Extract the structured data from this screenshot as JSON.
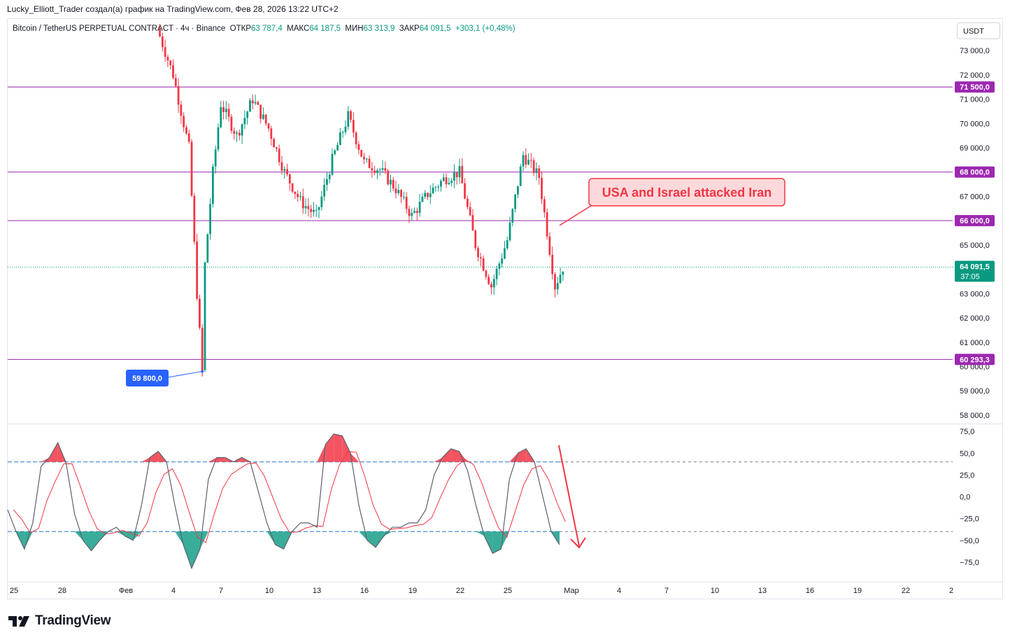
{
  "header": {
    "attribution": "Lucky_Elliott_Trader создал(а) график на TradingView.com, Фев 28, 2026 13:22 UTC+2"
  },
  "legend": {
    "symbol": "Bitcoin / TetherUS PERPETUAL CONTRACT · 4ч · Binance",
    "open_label": "ОТКР",
    "open_value": "63 787,4",
    "high_label": "МАКС",
    "high_value": "64 187,5",
    "low_label": "МИН",
    "low_value": "63 313,9",
    "close_label": "ЗАКР",
    "close_value": "64 091,5",
    "change": "+303,1 (+0,48%)"
  },
  "currency_button": "USDT",
  "brand": "TradingView",
  "colors": {
    "up": "#089981",
    "down": "#f23645",
    "level": "#9c27b0",
    "price_tag": "#089981",
    "low_tag": "#2962ff",
    "osc_line": "#5d606b",
    "osc_signal": "#f23645"
  },
  "chart_data": [
    {
      "type": "candlestick",
      "symbol": "BTCUSDT.P",
      "timeframe": "4h",
      "ylim": [
        57500,
        74000
      ],
      "y_ticks": [
        "73 000,0",
        "72 000,0",
        "71 000,0",
        "70 000,0",
        "69 000,0",
        "68 000,0",
        "67 000,0",
        "66 000,0",
        "65 000,0",
        "63 000,0",
        "62 000,0",
        "61 000,0",
        "60 000,0",
        "59 000,0",
        "58 000,0"
      ],
      "x_ticks": [
        "25",
        "28",
        "Фев",
        "4",
        "7",
        "10",
        "13",
        "16",
        "19",
        "22",
        "25",
        "Мар",
        "4",
        "7",
        "10",
        "13",
        "16",
        "19",
        "22",
        "2"
      ],
      "levels": [
        {
          "value": 71500,
          "label": "71 500,0"
        },
        {
          "value": 68000,
          "label": "68 000,0"
        },
        {
          "value": 66000,
          "label": "66 000,0"
        },
        {
          "value": 60293.3,
          "label": "60 293,3"
        }
      ],
      "last_price": {
        "value": 64091.5,
        "label": "64 091,5",
        "countdown": "37:05"
      },
      "low_marker": {
        "value": 59800,
        "label": "59 800,0"
      },
      "annotation": "USA and Israel attacked Iran",
      "price_path": [
        [
          "2026-02-03",
          73900
        ],
        [
          "2026-02-04",
          72000
        ],
        [
          "2026-02-05",
          69000
        ],
        [
          "2026-02-05T12",
          63000
        ],
        [
          "2026-02-05T20",
          59800
        ],
        [
          "2026-02-06",
          64200
        ],
        [
          "2026-02-06T12",
          68000
        ],
        [
          "2026-02-07",
          70800
        ],
        [
          "2026-02-08",
          69500
        ],
        [
          "2026-02-09",
          71000
        ],
        [
          "2026-02-10",
          69800
        ],
        [
          "2026-02-11",
          68000
        ],
        [
          "2026-02-12",
          66800
        ],
        [
          "2026-02-13",
          66200
        ],
        [
          "2026-02-14",
          68500
        ],
        [
          "2026-02-15",
          70300
        ],
        [
          "2026-02-16",
          68400
        ],
        [
          "2026-02-17",
          68100
        ],
        [
          "2026-02-18",
          67300
        ],
        [
          "2026-02-19",
          66200
        ],
        [
          "2026-02-20",
          67100
        ],
        [
          "2026-02-21",
          67700
        ],
        [
          "2026-02-22",
          68000
        ],
        [
          "2026-02-23",
          65000
        ],
        [
          "2026-02-24",
          63300
        ],
        [
          "2026-02-25",
          65200
        ],
        [
          "2026-02-26",
          68700
        ],
        [
          "2026-02-27",
          67800
        ],
        [
          "2026-02-28",
          63300
        ],
        [
          "2026-02-28T12",
          64091.5
        ]
      ]
    },
    {
      "type": "line",
      "name": "oscillator",
      "ylim": [
        -90,
        80
      ],
      "y_ticks": [
        "75,0",
        "50,0",
        "25,0",
        "0,0",
        "−25,0",
        "−50,0",
        "−75,0"
      ],
      "upper_level": 40,
      "lower_level": -40,
      "series": [
        {
          "values": [
            -15,
            -40,
            -60,
            -30,
            35,
            45,
            62,
            38,
            -20,
            -50,
            -62,
            -50,
            -40,
            -35,
            -45,
            -50,
            -10,
            45,
            52,
            40,
            -10,
            -55,
            -82,
            -60,
            20,
            45,
            45,
            40,
            45,
            40,
            5,
            -30,
            -55,
            -60,
            -40,
            -30,
            -30,
            -35,
            60,
            72,
            70,
            50,
            -10,
            -50,
            -58,
            -45,
            -35,
            -35,
            -30,
            -30,
            -15,
            25,
            45,
            55,
            52,
            30,
            -10,
            -45,
            -65,
            -60,
            20,
            50,
            55,
            40,
            0,
            -40,
            -55
          ]
        }
      ]
    }
  ]
}
